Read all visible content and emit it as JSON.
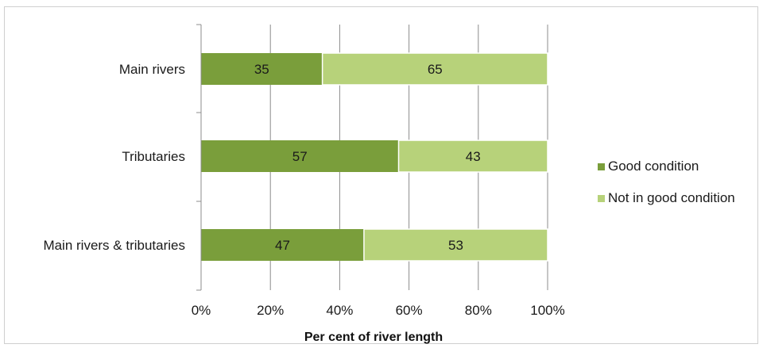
{
  "chart_data": {
    "type": "bar",
    "orientation": "horizontal",
    "stacked": true,
    "categories": [
      "Main rivers",
      "Tributaries",
      "Main rivers & tributaries"
    ],
    "series": [
      {
        "name": "Good condition",
        "values": [
          35,
          57,
          47
        ],
        "color": "#7a9e3b"
      },
      {
        "name": "Not in good condition",
        "values": [
          65,
          43,
          53
        ],
        "color": "#b7d27a"
      }
    ],
    "xlabel": "Per cent of river length",
    "ylabel": "",
    "xlim": [
      0,
      100
    ],
    "xticks": [
      "0%",
      "20%",
      "40%",
      "60%",
      "80%",
      "100%"
    ],
    "grid": true,
    "legend_position": "right"
  }
}
